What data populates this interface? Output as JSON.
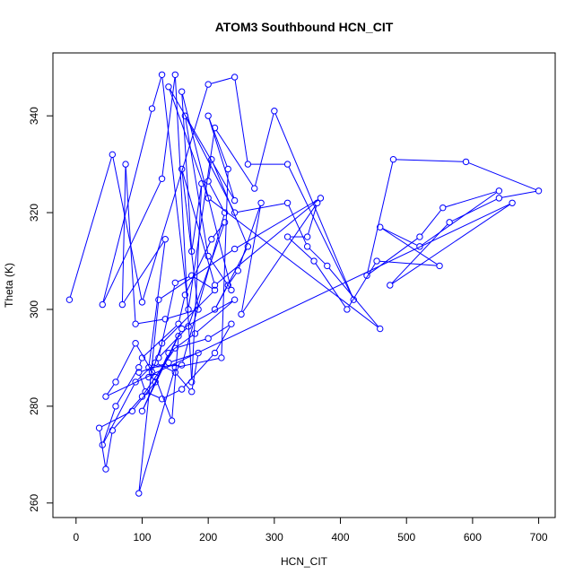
{
  "chart_data": {
    "type": "line",
    "title": "ATOM3 Southbound HCN_CIT",
    "xlabel": "HCN_CIT",
    "ylabel": "Theta (K)",
    "xlim": [
      -35,
      725
    ],
    "ylim": [
      257,
      353
    ],
    "xticks": [
      0,
      100,
      200,
      300,
      400,
      500,
      600,
      700
    ],
    "yticks": [
      260,
      280,
      300,
      320,
      340
    ],
    "series": [
      {
        "color": "#0000ff",
        "marker": "open-circle",
        "points": [
          [
            -10,
            302
          ],
          [
            55,
            332
          ],
          [
            100,
            301.5
          ],
          [
            200,
            346.5
          ],
          [
            240,
            348
          ],
          [
            260,
            330
          ],
          [
            320,
            330
          ],
          [
            420,
            302
          ],
          [
            300,
            341
          ],
          [
            270,
            325
          ],
          [
            210,
            337.5
          ],
          [
            170,
            300
          ],
          [
            130,
            348.5
          ],
          [
            115,
            341.5
          ],
          [
            40,
            301
          ],
          [
            130,
            327
          ],
          [
            150,
            348.5
          ],
          [
            175,
            285
          ],
          [
            190,
            326
          ],
          [
            175,
            312
          ],
          [
            160,
            345
          ],
          [
            235,
            304
          ],
          [
            200,
            311
          ],
          [
            165,
            340
          ],
          [
            240,
            320
          ],
          [
            320,
            322
          ],
          [
            350,
            313
          ],
          [
            380,
            309
          ],
          [
            460,
            296
          ],
          [
            200,
            323
          ],
          [
            140,
            346
          ],
          [
            240,
            322.5
          ],
          [
            200,
            340
          ],
          [
            230,
            329
          ],
          [
            220,
            290
          ],
          [
            150,
            288
          ],
          [
            95,
            262
          ],
          [
            125,
            302
          ],
          [
            240,
            312.5
          ],
          [
            370,
            323
          ],
          [
            210,
            305
          ],
          [
            160,
            329
          ],
          [
            185,
            300
          ],
          [
            135,
            298
          ],
          [
            90,
            297
          ],
          [
            75,
            330
          ],
          [
            70,
            301
          ],
          [
            135,
            314.5
          ],
          [
            110,
            288
          ],
          [
            160,
            288.5
          ],
          [
            225,
            320
          ],
          [
            200,
            326.5
          ],
          [
            205,
            331
          ],
          [
            260,
            313
          ],
          [
            210,
            300
          ],
          [
            230,
            305
          ],
          [
            245,
            308
          ],
          [
            280,
            322
          ],
          [
            250,
            299
          ],
          [
            365,
            322
          ],
          [
            350,
            315
          ],
          [
            320,
            315
          ],
          [
            360,
            310
          ],
          [
            410,
            300
          ],
          [
            455,
            310
          ],
          [
            550,
            309
          ],
          [
            460,
            317
          ],
          [
            520,
            313
          ],
          [
            640,
            324.5
          ],
          [
            555,
            321
          ],
          [
            520,
            315
          ],
          [
            440,
            307
          ],
          [
            480,
            331
          ],
          [
            590,
            330.5
          ],
          [
            700,
            324.5
          ],
          [
            640,
            323
          ],
          [
            565,
            318
          ],
          [
            475,
            305
          ],
          [
            660,
            322
          ],
          [
            45,
            282
          ],
          [
            60,
            285
          ],
          [
            90,
            293
          ],
          [
            120,
            286
          ],
          [
            145,
            277
          ],
          [
            155,
            294.5
          ],
          [
            100,
            279
          ],
          [
            140,
            291
          ],
          [
            180,
            295
          ],
          [
            240,
            302
          ],
          [
            160,
            296
          ],
          [
            120,
            285
          ],
          [
            85,
            279
          ],
          [
            35,
            275.5
          ],
          [
            45,
            267
          ],
          [
            55,
            275
          ],
          [
            100,
            282
          ],
          [
            150,
            292
          ],
          [
            200,
            294
          ],
          [
            235,
            297
          ],
          [
            210,
            291
          ],
          [
            160,
            283.5
          ],
          [
            130,
            281.5
          ],
          [
            105,
            283
          ],
          [
            95,
            287
          ],
          [
            140,
            289
          ],
          [
            185,
            291
          ],
          [
            175,
            283
          ],
          [
            150,
            287
          ],
          [
            120,
            289
          ],
          [
            90,
            285
          ],
          [
            40,
            272
          ],
          [
            60,
            280
          ],
          [
            95,
            288
          ],
          [
            100,
            290
          ],
          [
            155,
            297
          ],
          [
            165,
            303
          ],
          [
            205,
            314.5
          ],
          [
            225,
            318
          ],
          [
            170,
            296.5
          ],
          [
            125,
            290
          ],
          [
            150,
            305.5
          ],
          [
            175,
            307
          ],
          [
            210,
            304
          ],
          [
            130,
            293
          ],
          [
            115,
            287
          ],
          [
            110,
            286
          ]
        ]
      }
    ]
  }
}
